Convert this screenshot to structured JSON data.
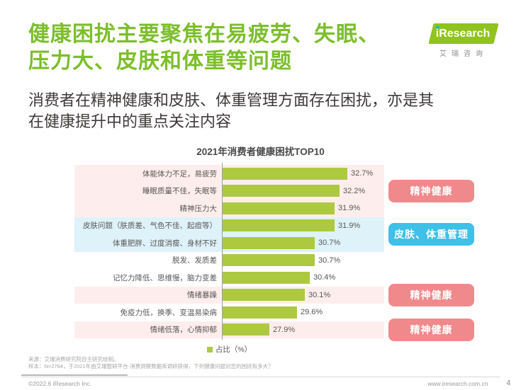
{
  "header": {
    "title_line1": "健康困扰主要聚焦在易疲劳、失眠、",
    "title_line2": "压力大、皮肤和体重等问题",
    "subtitle_line1": "消费者在精神健康和皮肤、体重管理方面存在困扰，亦是其",
    "subtitle_line2": "在健康提升中的重点关注内容",
    "logo": {
      "brand": "iResearch",
      "brand_cn": "艾瑞咨询"
    }
  },
  "chart_data": {
    "type": "bar",
    "orientation": "horizontal",
    "title": "2021年消费者健康困扰TOP10",
    "categories": [
      "体能体力不足，易疲劳",
      "睡眠质量不佳，失眠等",
      "精神压力大",
      "皮肤问题（肤质差、气色不佳、起痘等）",
      "体重肥胖、过度消瘦、身材不好",
      "脱发、发质差",
      "记忆力降低、思维慢，脑力变差",
      "情绪暴躁",
      "免疫力低，换季、变温易染病",
      "情绪低落，心情抑郁"
    ],
    "values": [
      32.7,
      32.2,
      31.9,
      31.9,
      30.7,
      30.7,
      30.4,
      30.1,
      29.6,
      27.9
    ],
    "unit": "%",
    "legend": "占比（%）",
    "xlim": [
      25,
      35
    ],
    "grid": false,
    "row_groups": [
      "mental",
      "mental",
      "mental",
      "skin",
      "skin",
      "none",
      "none",
      "mental",
      "none",
      "mental"
    ],
    "annotations": [
      {
        "label": "精神健康",
        "color": "#f0898c",
        "rows": [
          1,
          3
        ]
      },
      {
        "label": "皮肤、体重管理",
        "color": "#3ec0e8",
        "rows": [
          4,
          5
        ]
      },
      {
        "label": "精神健康",
        "color": "#f0898c",
        "rows": [
          8,
          8
        ]
      },
      {
        "label": "精神健康",
        "color": "#f0898c",
        "rows": [
          10,
          10
        ]
      }
    ]
  },
  "footer": {
    "source": "来源：艾瑞消费研究院自主研究绘制。",
    "sample": "样本：N=2764，于2021年由艾瑞智研平台-消费洞察数据库调研获得，下列健康问题对您的困扰有多大？",
    "copyright": "©2022.6 iResearch Inc.",
    "website": "www.iresearch.com.cn",
    "page_number": "4"
  },
  "colors": {
    "title_green": "#7cbe2b",
    "brand_green": "#8fc320",
    "bar_green": "#adc93f",
    "badge_pink": "#f0898c",
    "badge_blue": "#3ec0e8",
    "row_pink": "#fdeeed",
    "row_blue": "#def2fa",
    "text_dark": "#3e3a39",
    "text_gray": "#595757"
  }
}
